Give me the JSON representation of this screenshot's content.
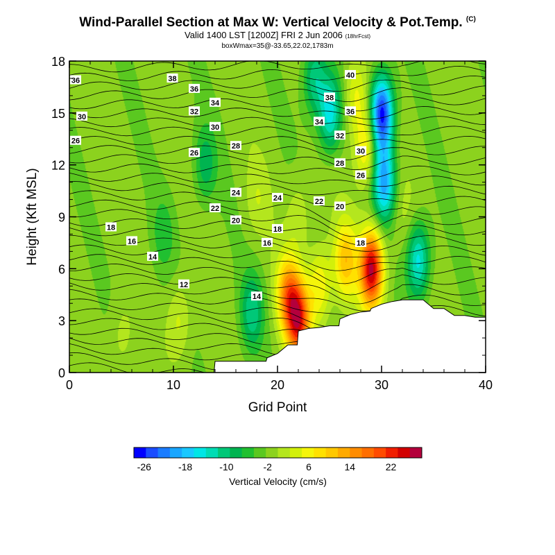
{
  "title": "Wind-Parallel Section at Max W: Vertical Velocity & Pot.Temp.",
  "title_mark": "(C)",
  "subtitle": "Valid 1400 LST [1200Z] FRI 2 Jun 2006",
  "subtitle_note": "(18hrFcst)",
  "info": "boxWmax=35@-33.65,22.02,1783m",
  "chart_data": {
    "type": "heatmap",
    "xlabel": "Grid Point",
    "ylabel": "Height (Kft MSL)",
    "xlim": [
      0,
      40
    ],
    "ylim": [
      0,
      18
    ],
    "xticks": [
      "0",
      "10",
      "20",
      "30",
      "40"
    ],
    "yticks": [
      "0",
      "3",
      "6",
      "9",
      "12",
      "15",
      "18"
    ],
    "colorbar": {
      "label": "Vertical Velocity (cm/s)",
      "tick_labels": [
        "-26",
        "-18",
        "-10",
        "-2",
        "6",
        "14",
        "22"
      ],
      "range": [
        -28,
        28
      ],
      "colors": [
        "#0000ff",
        "#1a4cff",
        "#1a7cff",
        "#19a6ff",
        "#19c8ff",
        "#00e6e6",
        "#00dcb4",
        "#00c878",
        "#00b450",
        "#20c030",
        "#5ac820",
        "#8cd21e",
        "#b4e61e",
        "#d2f00a",
        "#f5f50a",
        "#ffe100",
        "#ffc800",
        "#ffaa00",
        "#ff8c00",
        "#ff6e00",
        "#ff4b00",
        "#f01e00",
        "#d20000",
        "#b4003c"
      ]
    },
    "terrain_profile": {
      "x": [
        0,
        13.9,
        14,
        18.9,
        19,
        20,
        21,
        21.9,
        22,
        23,
        24,
        25,
        25.9,
        26,
        27,
        28,
        28.9,
        29,
        30,
        31,
        32,
        34,
        35,
        36,
        37,
        38,
        39,
        40
      ],
      "height_kft": [
        0,
        0,
        0.65,
        0.65,
        0.85,
        1.1,
        1.6,
        1.6,
        2.4,
        2.55,
        2.6,
        2.7,
        2.7,
        3.1,
        3.35,
        3.5,
        3.55,
        3.7,
        3.95,
        4.1,
        4.2,
        4.2,
        3.7,
        3.7,
        3.3,
        3.3,
        3.2,
        3.2
      ]
    },
    "vertical_velocity_features": [
      {
        "x": 29,
        "z": 6,
        "w": 28
      },
      {
        "x": 22,
        "z": 3,
        "w": 23
      },
      {
        "x": 21,
        "z": 4.5,
        "w": 16
      },
      {
        "x": 26.5,
        "z": 6.5,
        "w": 12
      },
      {
        "x": 24,
        "z": 5,
        "w": 9
      },
      {
        "x": 28.5,
        "z": 13,
        "w": 10
      },
      {
        "x": 27.5,
        "z": 16,
        "w": 7
      },
      {
        "x": 30,
        "z": 15,
        "w": -26
      },
      {
        "x": 30.2,
        "z": 11,
        "w": -18
      },
      {
        "x": 25,
        "z": 15,
        "w": -14
      },
      {
        "x": 23.5,
        "z": 17,
        "w": -10
      },
      {
        "x": 33.5,
        "z": 6.5,
        "w": -14
      },
      {
        "x": 17.5,
        "z": 3.5,
        "w": -9
      },
      {
        "x": 13,
        "z": 12,
        "w": -7
      },
      {
        "x": 9,
        "z": 8,
        "w": -4
      },
      {
        "x": 10.5,
        "z": 3,
        "w": 5
      },
      {
        "x": 5,
        "z": 2,
        "w": 3
      },
      {
        "x": 18,
        "z": 10,
        "w": 3
      },
      {
        "x": 22,
        "z": 9,
        "w": 4
      },
      {
        "x": 32,
        "z": 9,
        "w": 2
      }
    ],
    "contour_labels": [
      {
        "x": 0.6,
        "z": 16.9,
        "text": "36"
      },
      {
        "x": 1.2,
        "z": 14.8,
        "text": "30"
      },
      {
        "x": 0.6,
        "z": 13.4,
        "text": "26"
      },
      {
        "x": 9.9,
        "z": 17.0,
        "text": "38"
      },
      {
        "x": 12.0,
        "z": 16.4,
        "text": "36"
      },
      {
        "x": 14.0,
        "z": 15.6,
        "text": "34"
      },
      {
        "x": 12.0,
        "z": 15.1,
        "text": "32"
      },
      {
        "x": 14.0,
        "z": 14.2,
        "text": "30"
      },
      {
        "x": 16.0,
        "z": 13.1,
        "text": "28"
      },
      {
        "x": 12.0,
        "z": 12.7,
        "text": "26"
      },
      {
        "x": 16.0,
        "z": 10.4,
        "text": "24"
      },
      {
        "x": 20.0,
        "z": 10.1,
        "text": "24"
      },
      {
        "x": 14.0,
        "z": 9.5,
        "text": "22"
      },
      {
        "x": 16.0,
        "z": 8.8,
        "text": "20"
      },
      {
        "x": 4.0,
        "z": 8.4,
        "text": "18"
      },
      {
        "x": 6.0,
        "z": 7.6,
        "text": "16"
      },
      {
        "x": 8.0,
        "z": 6.7,
        "text": "14"
      },
      {
        "x": 11.0,
        "z": 5.1,
        "text": "12"
      },
      {
        "x": 18.0,
        "z": 4.4,
        "text": "14"
      },
      {
        "x": 19.0,
        "z": 7.5,
        "text": "16"
      },
      {
        "x": 20.0,
        "z": 8.3,
        "text": "18"
      },
      {
        "x": 24.0,
        "z": 9.9,
        "text": "22"
      },
      {
        "x": 26.0,
        "z": 9.6,
        "text": "20"
      },
      {
        "x": 28.0,
        "z": 7.5,
        "text": "18"
      },
      {
        "x": 27.0,
        "z": 17.2,
        "text": "40"
      },
      {
        "x": 25.0,
        "z": 15.9,
        "text": "38"
      },
      {
        "x": 27.0,
        "z": 15.1,
        "text": "36"
      },
      {
        "x": 24.0,
        "z": 14.5,
        "text": "34"
      },
      {
        "x": 26.0,
        "z": 13.7,
        "text": "32"
      },
      {
        "x": 28.0,
        "z": 12.8,
        "text": "30"
      },
      {
        "x": 26.0,
        "z": 12.1,
        "text": "28"
      },
      {
        "x": 28.0,
        "z": 11.4,
        "text": "26"
      }
    ]
  }
}
